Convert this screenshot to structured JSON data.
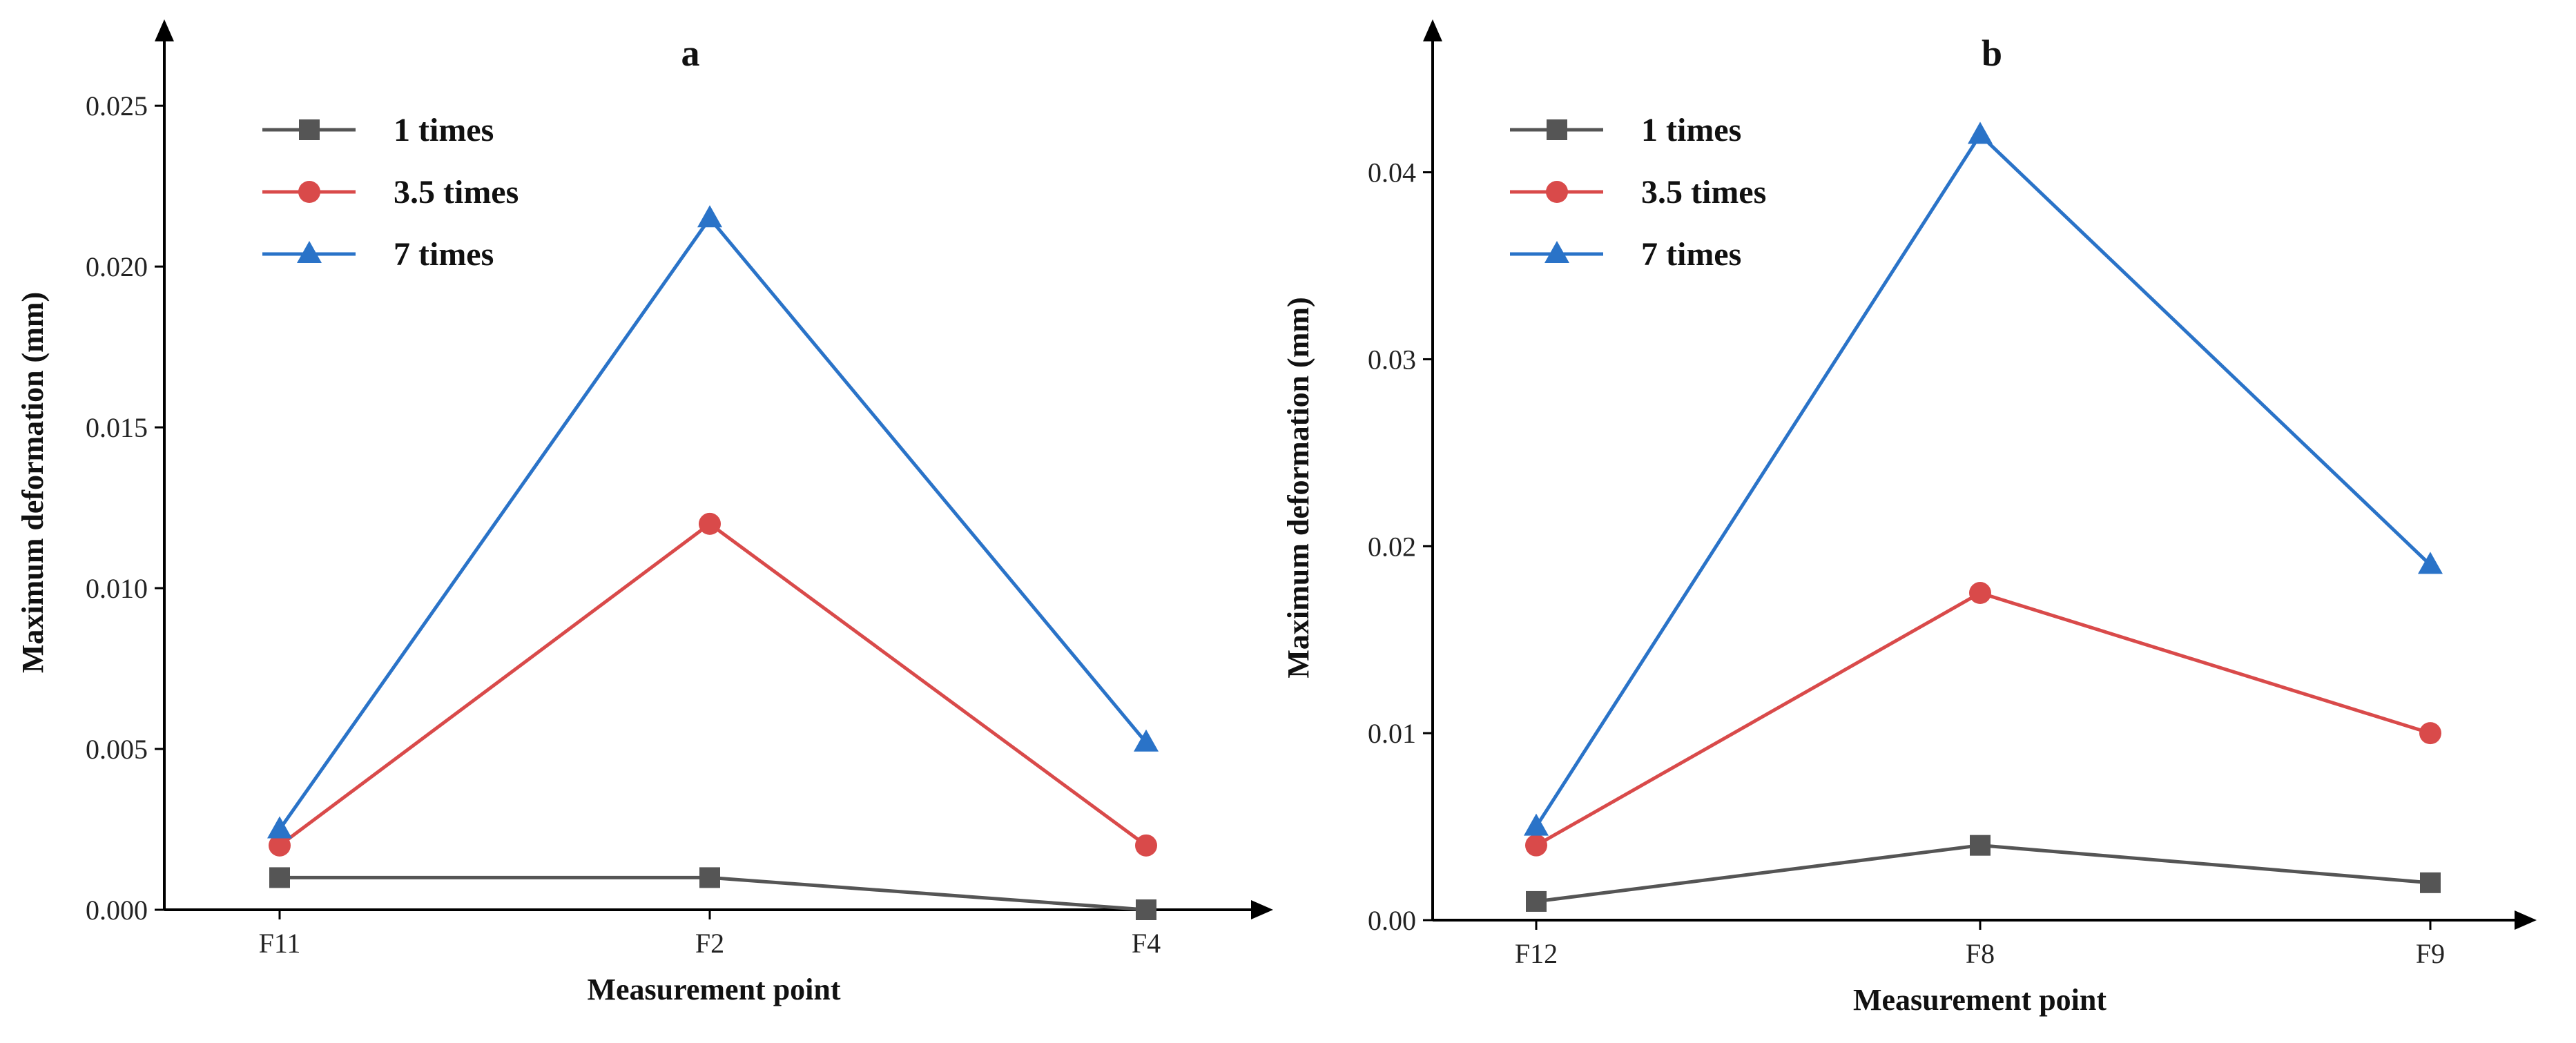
{
  "chart_data": [
    {
      "type": "line",
      "title": "a",
      "xlabel": "Measurement point",
      "ylabel": "Maximum deformation (mm)",
      "categories": [
        "F11",
        "F2",
        "F4"
      ],
      "ylim": [
        0,
        0.027
      ],
      "yticks": [
        0.0,
        0.005,
        0.01,
        0.015,
        0.02,
        0.025
      ],
      "ytick_labels": [
        "0.000",
        "0.005",
        "0.010",
        "0.015",
        "0.020",
        "0.025"
      ],
      "series": [
        {
          "name": "1 times",
          "color": "#555555",
          "marker": "square",
          "values": [
            0.001,
            0.001,
            0.0
          ]
        },
        {
          "name": "3.5 times",
          "color": "#d94a4a",
          "marker": "circle",
          "values": [
            0.002,
            0.012,
            0.002
          ]
        },
        {
          "name": "7 times",
          "color": "#2a73c8",
          "marker": "triangle",
          "values": [
            0.0025,
            0.0215,
            0.0052
          ]
        }
      ]
    },
    {
      "type": "line",
      "title": "b",
      "xlabel": "Measurement point",
      "ylabel": "Maximum deformation (mm)",
      "categories": [
        "F12",
        "F8",
        "F9"
      ],
      "ylim": [
        0,
        0.047
      ],
      "yticks": [
        0.0,
        0.01,
        0.02,
        0.03,
        0.04
      ],
      "ytick_labels": [
        "0.00",
        "0.01",
        "0.02",
        "0.03",
        "0.04"
      ],
      "series": [
        {
          "name": "1 times",
          "color": "#555555",
          "marker": "square",
          "values": [
            0.001,
            0.004,
            0.002
          ]
        },
        {
          "name": "3.5 times",
          "color": "#d94a4a",
          "marker": "circle",
          "values": [
            0.004,
            0.0175,
            0.01
          ]
        },
        {
          "name": "7 times",
          "color": "#2a73c8",
          "marker": "triangle",
          "values": [
            0.005,
            0.042,
            0.019
          ]
        }
      ]
    }
  ]
}
